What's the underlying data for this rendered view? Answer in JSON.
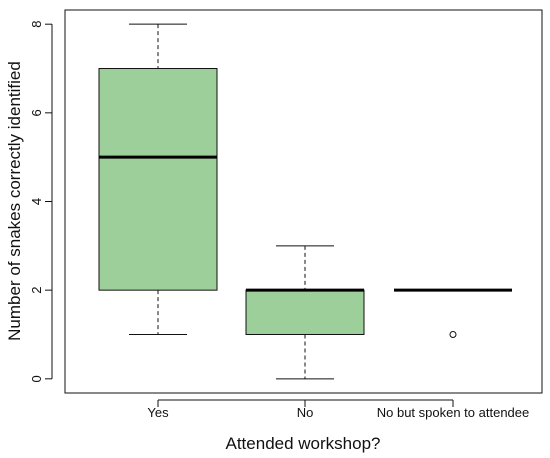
{
  "chart_data": {
    "type": "boxplot",
    "xlabel": "Attended workshop?",
    "ylabel": "Number of snakes correctly identified",
    "categories": [
      "Yes",
      "No",
      "No but spoken to attendee"
    ],
    "ylim": [
      0,
      8
    ],
    "y_ticks": [
      0,
      2,
      4,
      6,
      8
    ],
    "grid": false,
    "legend": "none",
    "boxes": [
      {
        "category": "Yes",
        "whisker_low": 1,
        "q1": 2,
        "median": 5,
        "q3": 7,
        "whisker_high": 8,
        "outliers": []
      },
      {
        "category": "No",
        "whisker_low": 0,
        "q1": 1,
        "median": 2,
        "q3": 2,
        "whisker_high": 3,
        "outliers": []
      },
      {
        "category": "No but spoken to attendee",
        "whisker_low": 2,
        "q1": 2,
        "median": 2,
        "q3": 2,
        "whisker_high": 2,
        "outliers": [
          1
        ]
      }
    ],
    "colors": {
      "box_fill": "#9ccf9a",
      "box_stroke": "#111111",
      "median": "#000000",
      "axis": "#111111"
    }
  }
}
